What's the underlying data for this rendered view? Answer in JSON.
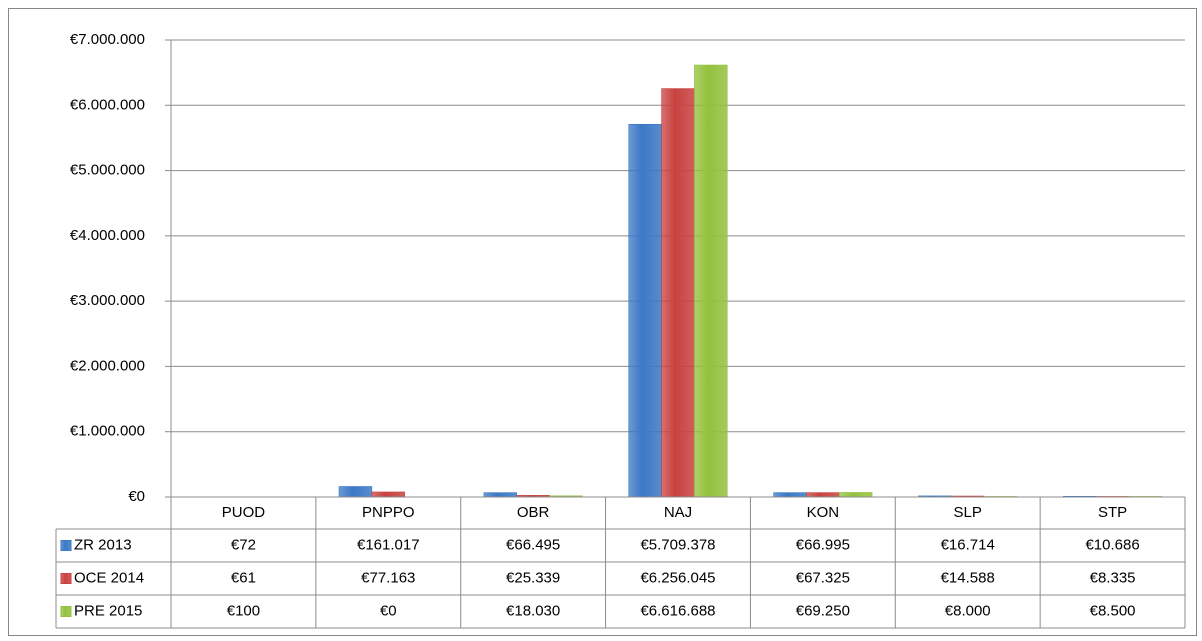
{
  "chart_data": {
    "type": "bar",
    "categories": [
      "PUOD",
      "PNPPO",
      "OBR",
      "NAJ",
      "KON",
      "SLP",
      "STP"
    ],
    "series": [
      {
        "name": "ZR 2013",
        "color": "#3b78c6",
        "values": [
          72,
          161017,
          66495,
          5709378,
          66995,
          16714,
          10686
        ],
        "value_labels": [
          "€72",
          "€161.017",
          "€66.495",
          "€5.709.378",
          "€66.995",
          "€16.714",
          "€10.686"
        ]
      },
      {
        "name": "OCE 2014",
        "color": "#c8423f",
        "values": [
          61,
          77163,
          25339,
          6256045,
          67325,
          14588,
          8335
        ],
        "value_labels": [
          "€61",
          "€77.163",
          "€25.339",
          "€6.256.045",
          "€67.325",
          "€14.588",
          "€8.335"
        ]
      },
      {
        "name": "PRE 2015",
        "color": "#93c13d",
        "values": [
          100,
          0,
          18030,
          6616688,
          69250,
          8000,
          8500
        ],
        "value_labels": [
          "€100",
          "€0",
          "€18.030",
          "€6.616.688",
          "€69.250",
          "€8.000",
          "€8.500"
        ]
      }
    ],
    "ylim": [
      0,
      7000000
    ],
    "yticks": [
      {
        "value": 0,
        "label": "€0"
      },
      {
        "value": 1000000,
        "label": "€1.000.000"
      },
      {
        "value": 2000000,
        "label": "€2.000.000"
      },
      {
        "value": 3000000,
        "label": "€3.000.000"
      },
      {
        "value": 4000000,
        "label": "€4.000.000"
      },
      {
        "value": 5000000,
        "label": "€5.000.000"
      },
      {
        "value": 6000000,
        "label": "€6.000.000"
      },
      {
        "value": 7000000,
        "label": "€7.000.000"
      }
    ],
    "grid": true
  }
}
